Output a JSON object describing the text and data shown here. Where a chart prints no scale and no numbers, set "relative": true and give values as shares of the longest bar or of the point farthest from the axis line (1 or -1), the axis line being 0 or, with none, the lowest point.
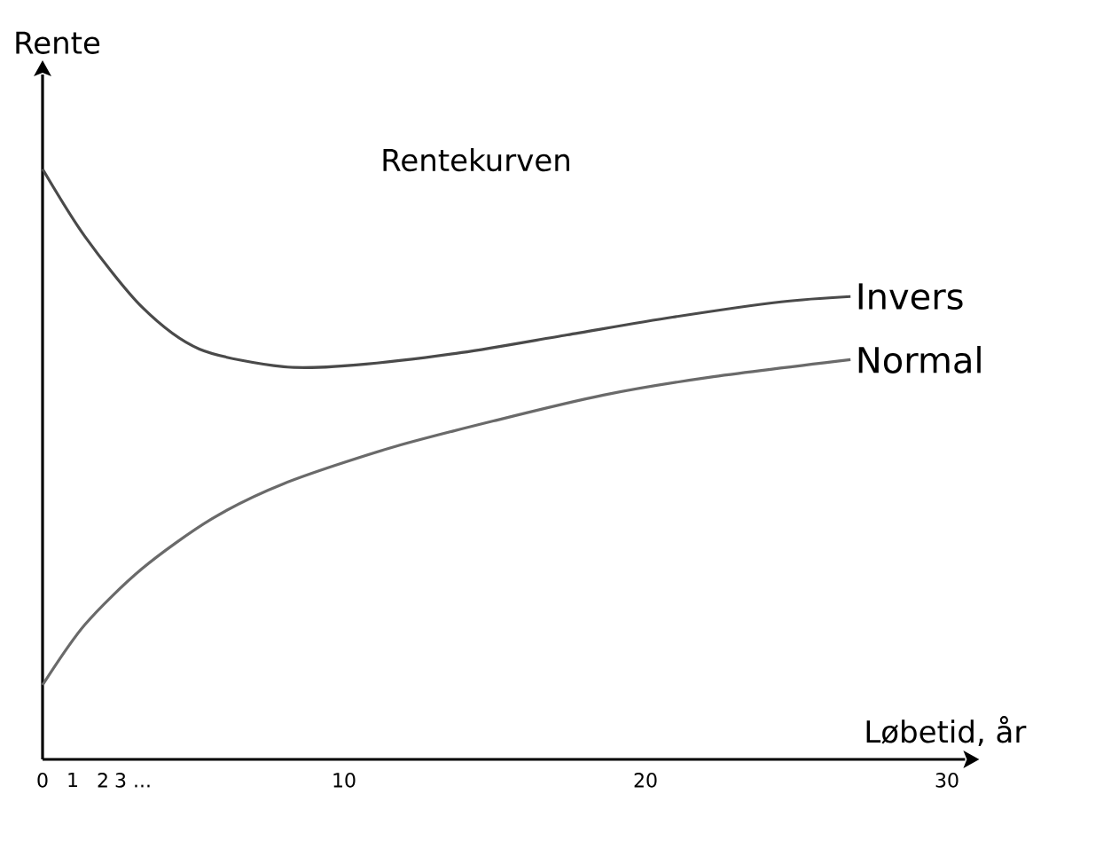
{
  "chart_data": {
    "type": "line",
    "title": "Rentekurven",
    "xlabel": "Løbetid, år",
    "ylabel": "Rente",
    "relative": true,
    "xlim": [
      0,
      30.6
    ],
    "xticks": [
      0,
      1,
      2,
      {
        "value": 3,
        "label": "3 ..."
      },
      10,
      20,
      30
    ],
    "series": [
      {
        "name": "Invers",
        "color": "#4a4a4a",
        "x": [
          0,
          1.4,
          3.3,
          5.2,
          8.0,
          10.4,
          13.9,
          17.4,
          20.9,
          24.5,
          26.8
        ],
        "values": [
          1.0,
          0.886,
          0.766,
          0.695,
          0.665,
          0.668,
          0.689,
          0.719,
          0.749,
          0.775,
          0.784
        ]
      },
      {
        "name": "Normal",
        "color": "#6a6a6a",
        "x": [
          0,
          1.4,
          3.3,
          5.6,
          8.0,
          11.5,
          15.1,
          18.6,
          22.1,
          26.8
        ],
        "values": [
          0.126,
          0.228,
          0.323,
          0.407,
          0.467,
          0.527,
          0.575,
          0.617,
          0.647,
          0.677
        ]
      }
    ]
  }
}
